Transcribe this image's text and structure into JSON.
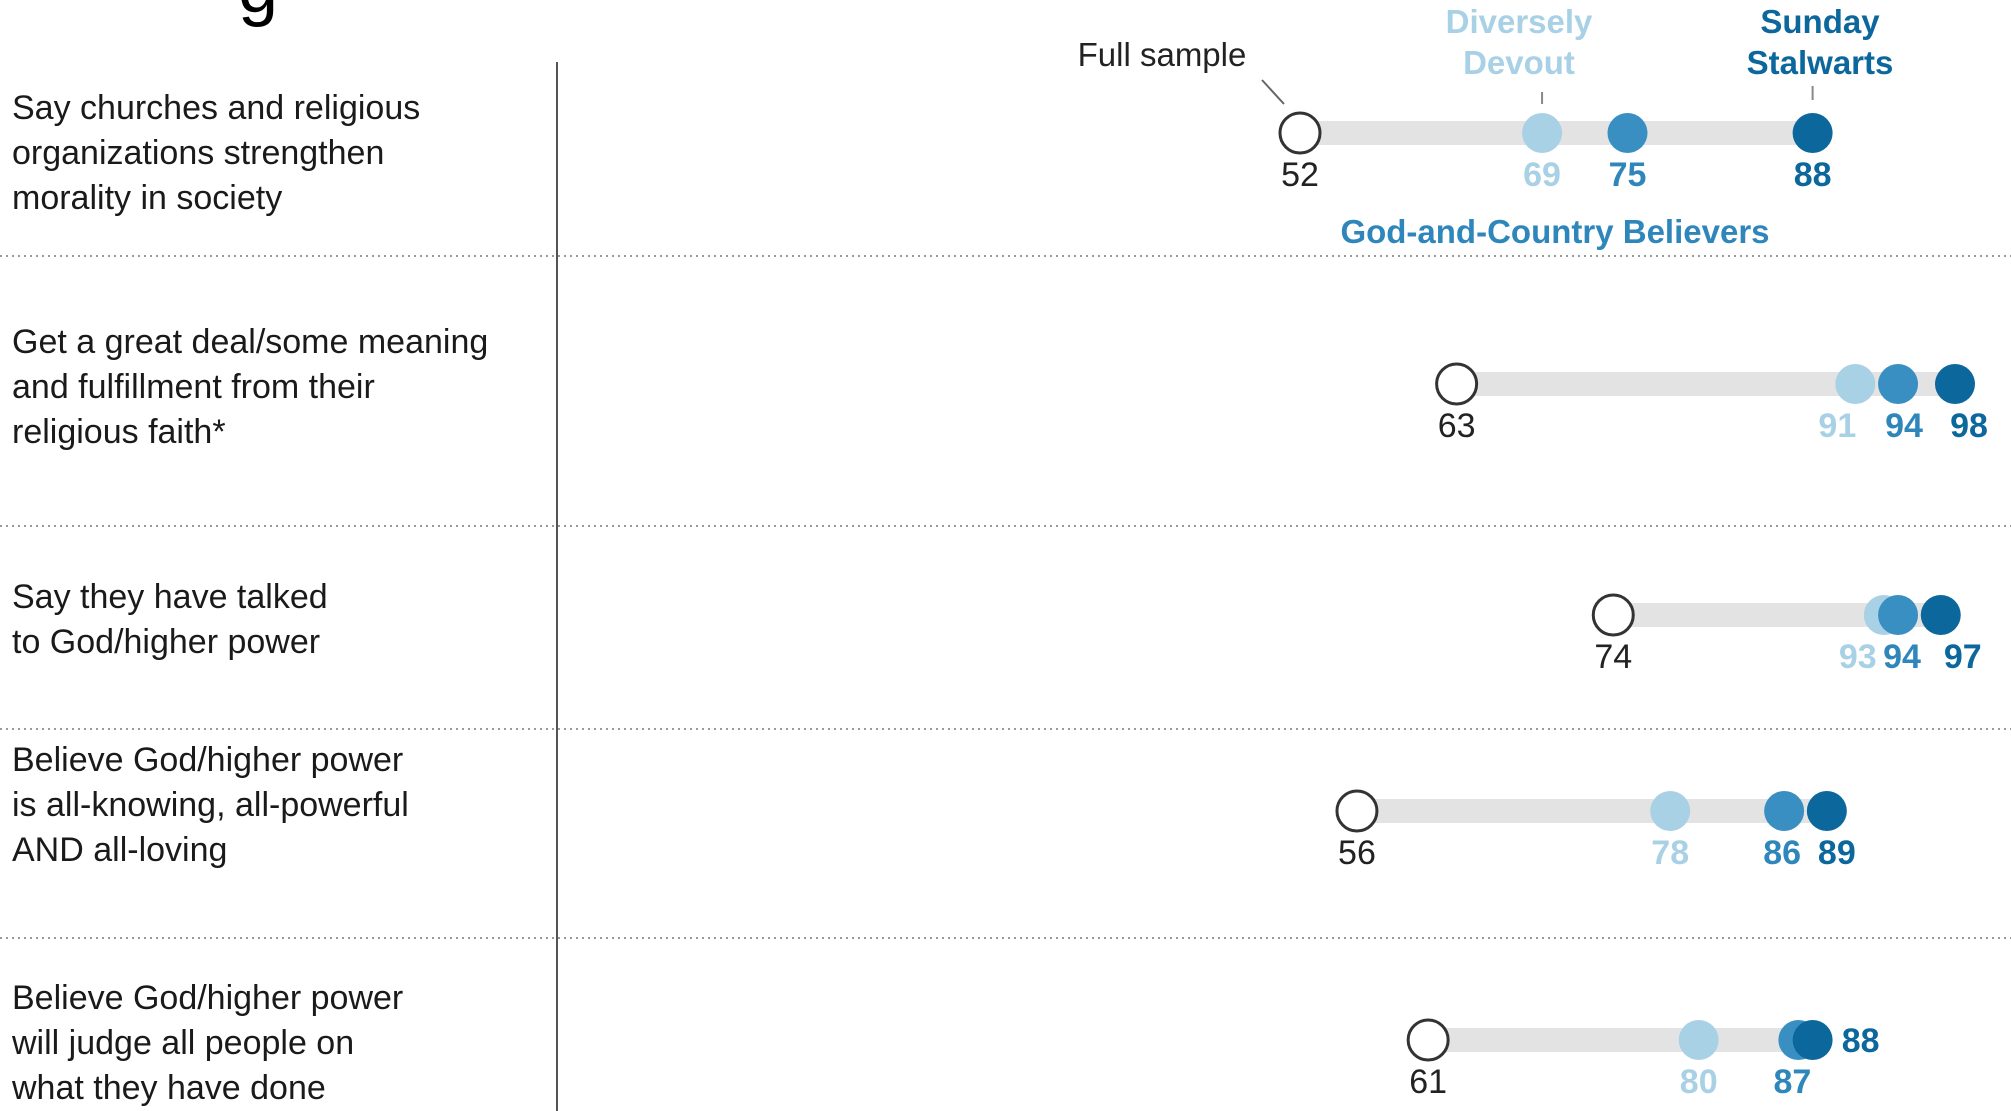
{
  "chart_data": {
    "type": "dot-range",
    "series": [
      {
        "name": "Full sample",
        "color": "#ffffff",
        "stroke": "#333333",
        "label_color": "#222222"
      },
      {
        "name": "Diversely Devout",
        "color": "#a9d1e6",
        "label_color": "#a9d1e6"
      },
      {
        "name": "God-and-Country Believers",
        "color": "#3a8fc2",
        "label_color": "#2f86bb"
      },
      {
        "name": "Sunday Stalwarts",
        "color": "#0b679c",
        "label_color": "#0b679c"
      }
    ],
    "legend_labels": {
      "full_sample": "Full sample",
      "diversely_devout": [
        "Diversely",
        "Devout"
      ],
      "god_and_country": "God-and-Country Believers",
      "sunday_stalwarts": [
        "Sunday",
        "Stalwarts"
      ]
    },
    "rows": [
      {
        "label_lines": [
          "Say churches and religious",
          "organizations strengthen",
          "morality in society"
        ],
        "values": [
          52,
          69,
          75,
          88
        ]
      },
      {
        "label_lines": [
          "Get a great deal/some meaning",
          "and fulfillment from their",
          "religious faith*"
        ],
        "values": [
          63,
          91,
          94,
          98
        ]
      },
      {
        "label_lines": [
          "Say they have talked",
          "to God/higher power"
        ],
        "values": [
          74,
          93,
          94,
          97
        ]
      },
      {
        "label_lines": [
          "Believe God/higher power",
          "is all-knowing, all-powerful",
          "AND all-loving"
        ],
        "values": [
          56,
          78,
          86,
          89
        ]
      },
      {
        "label_lines": [
          "Believe God/higher power",
          "will judge all people on",
          "what they have done"
        ],
        "values": [
          61,
          80,
          87,
          88
        ]
      }
    ],
    "title": "",
    "xlabel": "",
    "ylabel": "",
    "xlim": [
      52,
      98
    ],
    "grid": false
  }
}
